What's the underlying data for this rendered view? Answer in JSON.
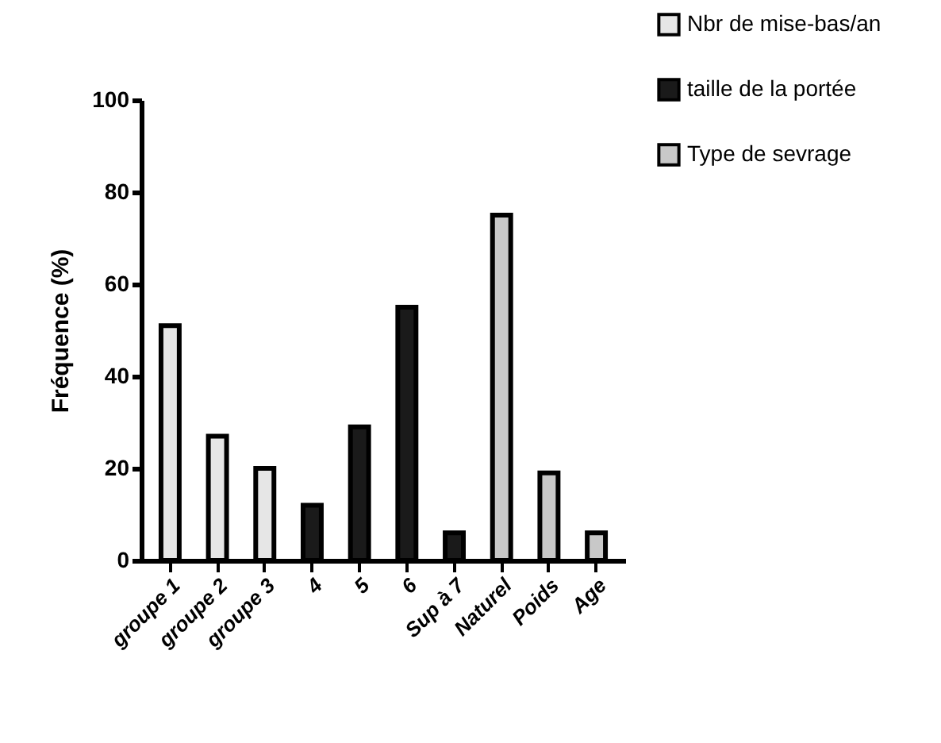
{
  "chart_data": {
    "type": "bar",
    "ylabel": "Fréquence (%)",
    "categories": [
      "groupe 1",
      "groupe 2",
      "groupe 3",
      "4",
      "5",
      "6",
      "Sup à 7",
      "Naturel",
      "Poids",
      "Age"
    ],
    "series": [
      {
        "name": "Nbr de mise-bas/an",
        "color": "#e6e6e6",
        "values": [
          51,
          27,
          20,
          null,
          null,
          null,
          null,
          null,
          null,
          null
        ]
      },
      {
        "name": "taille de la portée",
        "color": "#1a1a1a",
        "values": [
          null,
          null,
          null,
          12,
          29,
          55,
          6,
          null,
          null,
          null
        ]
      },
      {
        "name": "Type de sevrage",
        "color": "#c8c8c8",
        "values": [
          null,
          null,
          null,
          null,
          null,
          null,
          null,
          75,
          19,
          6
        ]
      }
    ],
    "ylim": [
      0,
      100
    ],
    "yticks": [
      0,
      20,
      40,
      60,
      80,
      100
    ],
    "grid": false,
    "legend": "top right"
  }
}
